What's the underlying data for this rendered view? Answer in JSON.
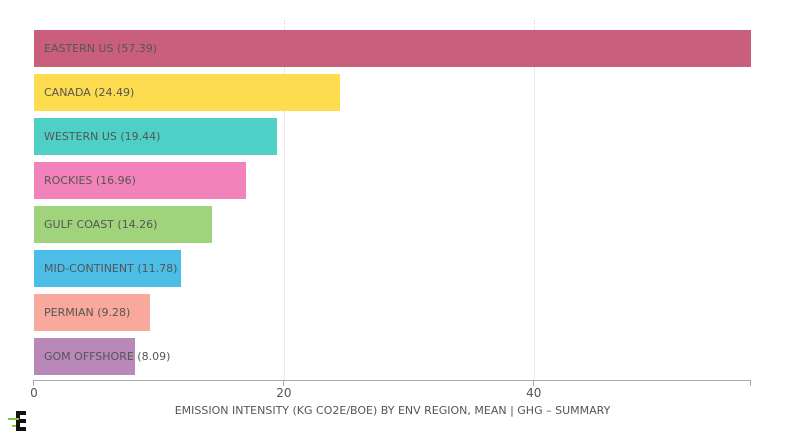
{
  "chart_data": {
    "type": "bar",
    "orientation": "horizontal",
    "title": "",
    "xlabel": "EMISSION INTENSITY (KG CO2E/BOE) BY ENV REGION, MEAN | GHG – SUMMARY",
    "ylabel": "",
    "xlim": [
      0,
      57.39
    ],
    "xticks": [
      0,
      20,
      40
    ],
    "grid": true,
    "legend": "none",
    "categories": [
      "EASTERN US",
      "CANADA",
      "WESTERN US",
      "ROCKIES",
      "GULF COAST",
      "MID-CONTINENT",
      "PERMIAN",
      "GOM OFFSHORE"
    ],
    "values": [
      57.39,
      24.49,
      19.44,
      16.96,
      14.26,
      11.78,
      9.28,
      8.09
    ],
    "labels": [
      "EASTERN US (57.39)",
      "CANADA (24.49)",
      "WESTERN US (19.44)",
      "ROCKIES (16.96)",
      "GULF COAST (14.26)",
      "MID-CONTINENT (11.78)",
      "PERMIAN (9.28)",
      "GOM OFFSHORE (8.09)"
    ],
    "colors": [
      "#c95f7a",
      "#fddc4f",
      "#4fd0c6",
      "#f283ba",
      "#a0d47c",
      "#4bbde6",
      "#f8a99b",
      "#b888b9"
    ]
  },
  "axis": {
    "tick_labels": [
      "0",
      "20",
      "40"
    ]
  },
  "logo": {
    "icon": "company-logo-icon"
  }
}
